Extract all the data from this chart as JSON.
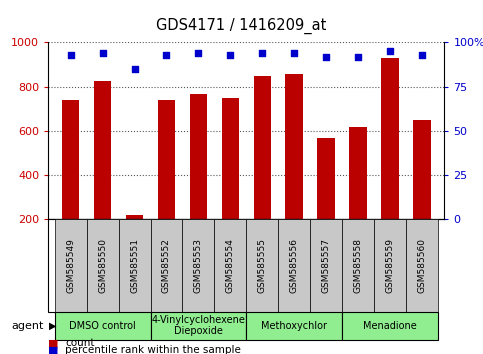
{
  "title": "GDS4171 / 1416209_at",
  "samples": [
    "GSM585549",
    "GSM585550",
    "GSM585551",
    "GSM585552",
    "GSM585553",
    "GSM585554",
    "GSM585555",
    "GSM585556",
    "GSM585557",
    "GSM585558",
    "GSM585559",
    "GSM585560"
  ],
  "counts": [
    740,
    828,
    218,
    740,
    768,
    748,
    848,
    858,
    568,
    618,
    928,
    648
  ],
  "percentile_ranks": [
    93,
    94,
    85,
    93,
    94,
    93,
    94,
    94,
    92,
    92,
    95,
    93
  ],
  "ylim_left": [
    200,
    1000
  ],
  "ylim_right": [
    0,
    100
  ],
  "yticks_left": [
    200,
    400,
    600,
    800,
    1000
  ],
  "yticks_right": [
    0,
    25,
    50,
    75,
    100
  ],
  "ytick_labels_right": [
    "0",
    "25",
    "50",
    "75",
    "100%"
  ],
  "bar_color": "#bb0000",
  "dot_color": "#0000cc",
  "agent_groups": [
    {
      "label": "DMSO control",
      "start": 0,
      "end": 3
    },
    {
      "label": "4-Vinylcyclohexene\nDiepoxide",
      "start": 3,
      "end": 6
    },
    {
      "label": "Methoxychlor",
      "start": 6,
      "end": 9
    },
    {
      "label": "Menadione",
      "start": 9,
      "end": 12
    }
  ],
  "green_color": "#90ee90",
  "gray_color": "#c8c8c8",
  "grid_color": "#555555",
  "tick_label_color_left": "#cc0000",
  "tick_label_color_right": "#0000cc",
  "legend_count_color": "#bb0000",
  "legend_pct_color": "#0000cc"
}
